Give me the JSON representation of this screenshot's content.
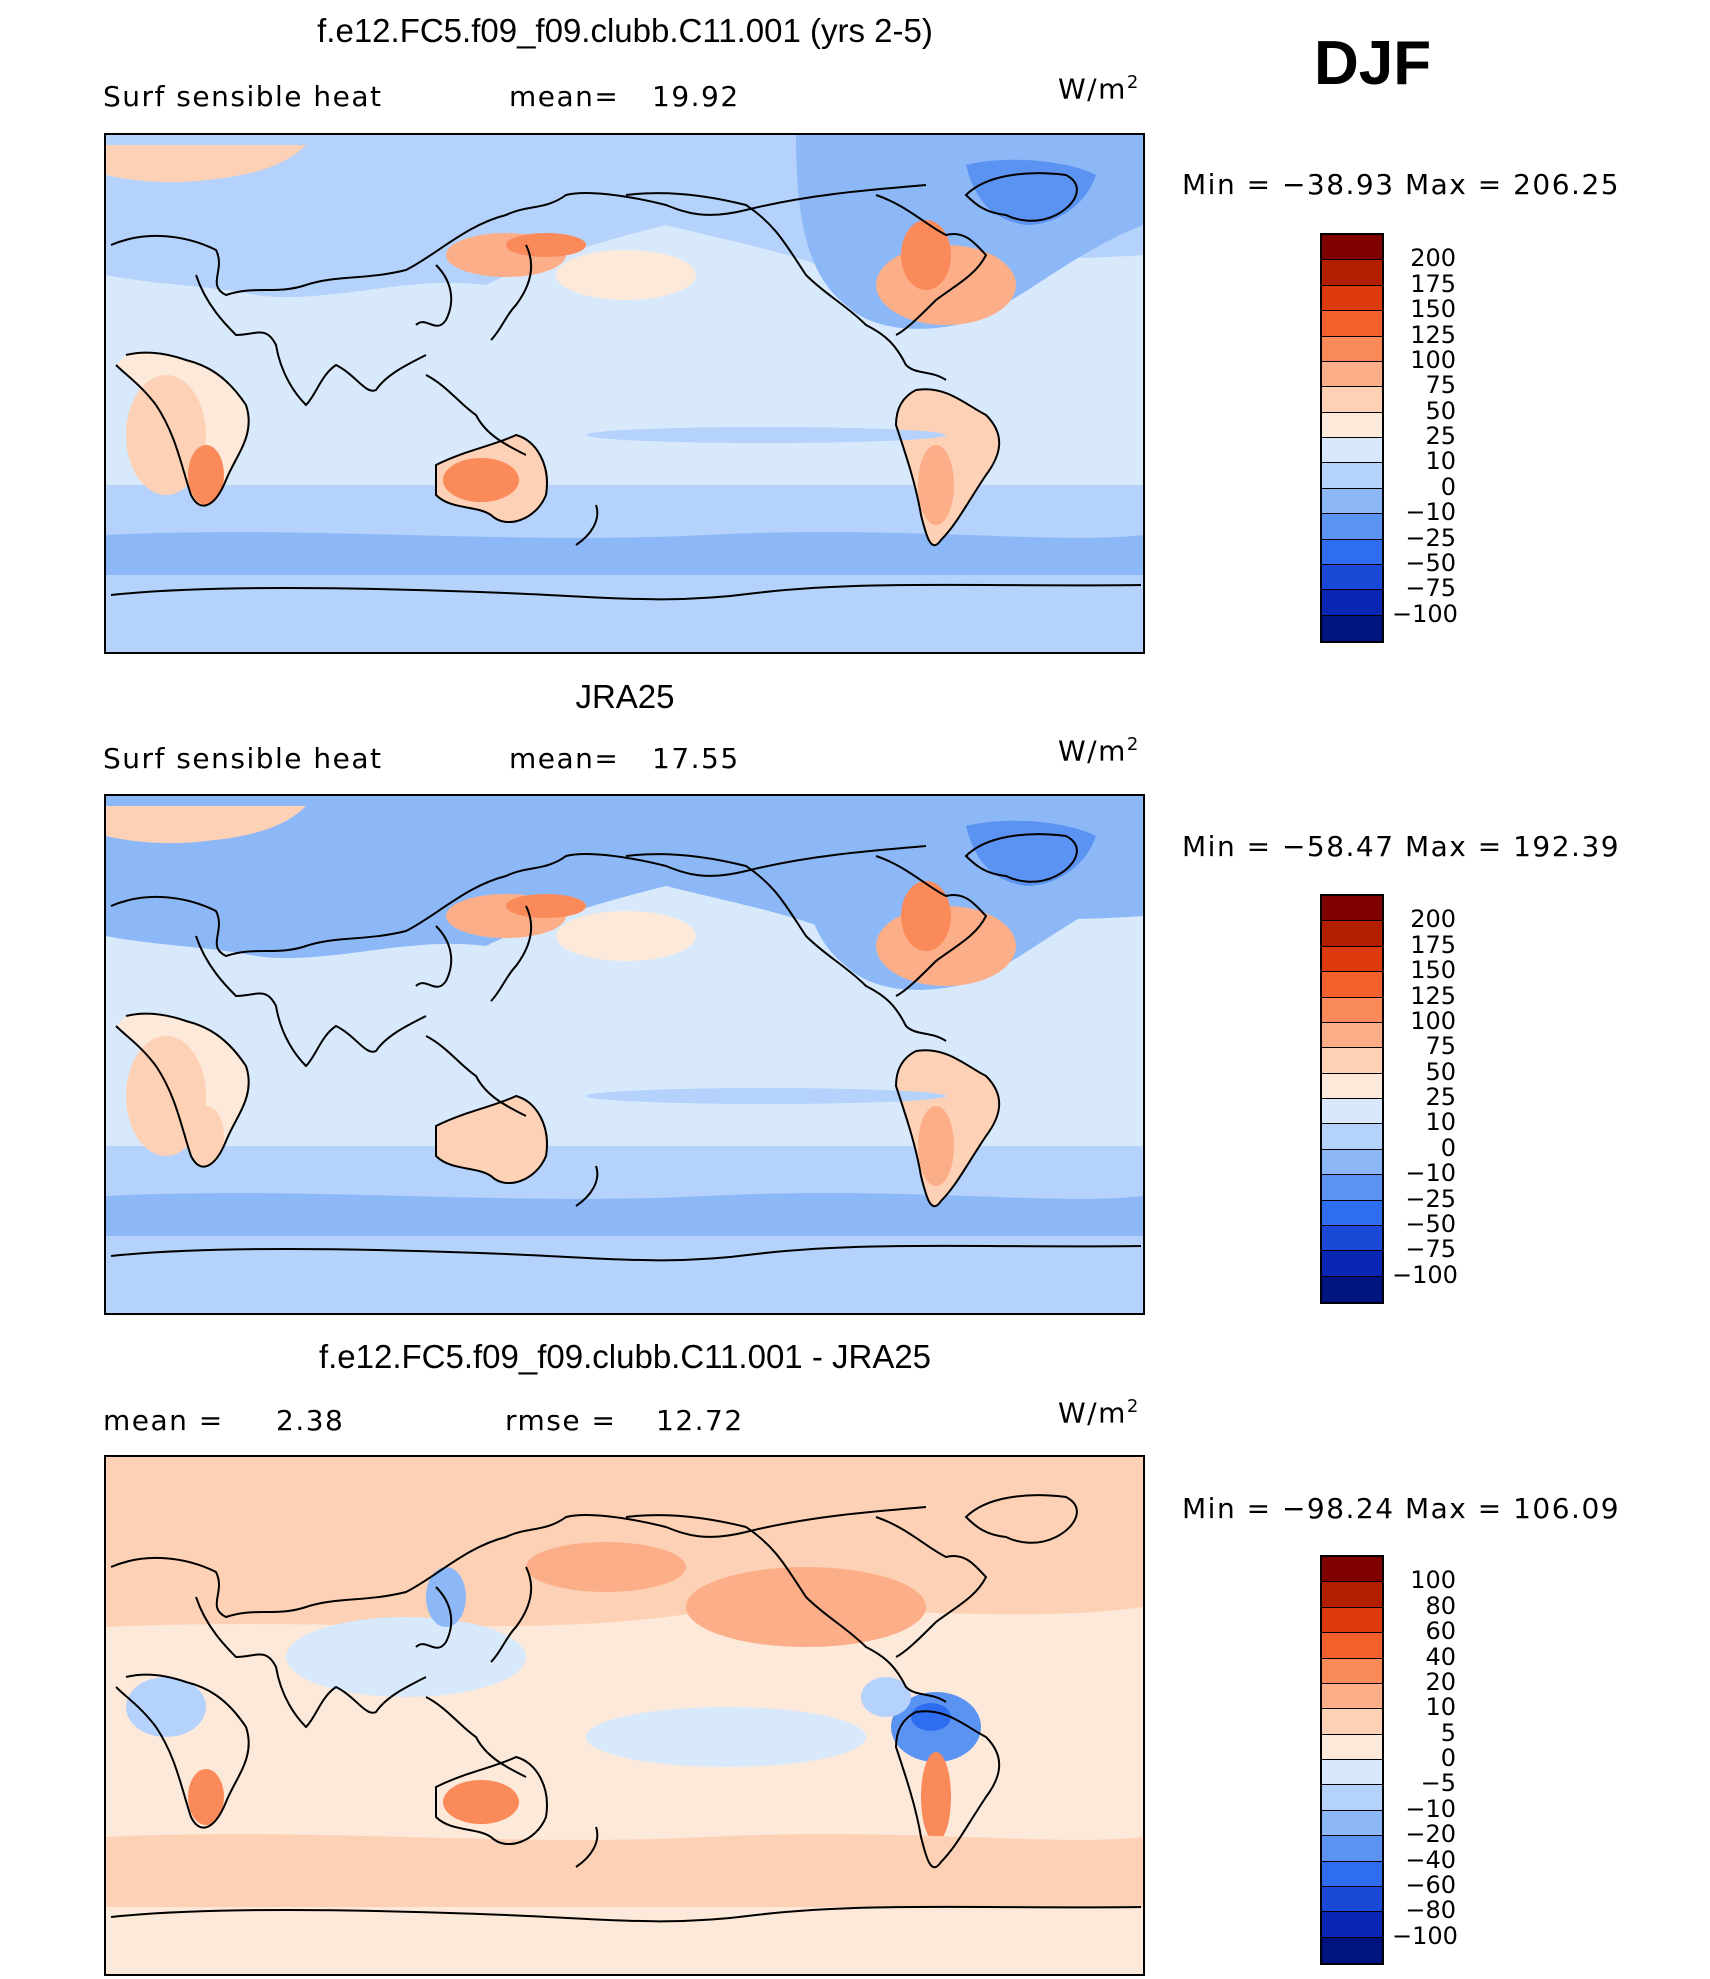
{
  "season": "DJF",
  "panels": [
    {
      "title": "f.e12.FC5.f09_f09.clubb.C11.001 (yrs 2-5)",
      "left_label": "Surf sensible heat",
      "mid_label": "mean=",
      "mid_value": "19.92",
      "units": "W/m",
      "units_sup": "2",
      "min_max": "Min = −38.93 Max = 206.25",
      "colorbar": {
        "labels": [
          "200",
          "175",
          "150",
          "125",
          "100",
          "75",
          "50",
          "25",
          "10",
          "0",
          "−10",
          "−25",
          "−50",
          "−75",
          "−100"
        ],
        "colors": [
          "#7f0000",
          "#b31e00",
          "#dd3a0f",
          "#f4602c",
          "#fb8a5a",
          "#fbae88",
          "#fdd1b5",
          "#fde9d9",
          "#d7e9fb",
          "#b4d2fb",
          "#8db8f7",
          "#5b93f2",
          "#2f6df0",
          "#1a49d8",
          "#0a27b4",
          "#00137f"
        ]
      },
      "map": {
        "scheme": "mean",
        "features": [
          {
            "name": "eurasia-cold",
            "cls": "n2"
          },
          {
            "name": "n-america-cold",
            "cls": "n3"
          },
          {
            "name": "kuroshio",
            "cls": "p3"
          },
          {
            "name": "gulf-stream",
            "cls": "p4"
          },
          {
            "name": "australia",
            "cls": "p4"
          },
          {
            "name": "southern-africa",
            "cls": "p4"
          },
          {
            "name": "south-america",
            "cls": "p2"
          },
          {
            "name": "southern-ocean",
            "cls": "n1"
          }
        ]
      }
    },
    {
      "title": "JRA25",
      "left_label": "Surf sensible heat",
      "mid_label": "mean=",
      "mid_value": "17.55",
      "units": "W/m",
      "units_sup": "2",
      "min_max": "Min = −58.47 Max = 192.39",
      "colorbar": {
        "labels": [
          "200",
          "175",
          "150",
          "125",
          "100",
          "75",
          "50",
          "25",
          "10",
          "0",
          "−10",
          "−25",
          "−50",
          "−75",
          "−100"
        ],
        "colors": [
          "#7f0000",
          "#b31e00",
          "#dd3a0f",
          "#f4602c",
          "#fb8a5a",
          "#fbae88",
          "#fdd1b5",
          "#fde9d9",
          "#d7e9fb",
          "#b4d2fb",
          "#8db8f7",
          "#5b93f2",
          "#2f6df0",
          "#1a49d8",
          "#0a27b4",
          "#00137f"
        ]
      },
      "map": {
        "scheme": "mean",
        "features": [
          {
            "name": "eurasia-cold",
            "cls": "n3"
          },
          {
            "name": "n-america-cold",
            "cls": "n3"
          },
          {
            "name": "kuroshio",
            "cls": "p3"
          },
          {
            "name": "gulf-stream",
            "cls": "p4"
          },
          {
            "name": "australia",
            "cls": "p2"
          },
          {
            "name": "southern-africa",
            "cls": "p2"
          },
          {
            "name": "south-america",
            "cls": "p2"
          },
          {
            "name": "southern-ocean",
            "cls": "n2"
          }
        ]
      }
    },
    {
      "title": "f.e12.FC5.f09_f09.clubb.C11.001 - JRA25",
      "left_label": "mean =",
      "left_value": "2.38",
      "mid_label": "rmse =",
      "mid_value": "12.72",
      "units": "W/m",
      "units_sup": "2",
      "min_max": "Min = −98.24 Max = 106.09",
      "colorbar": {
        "labels": [
          "100",
          "80",
          "60",
          "40",
          "20",
          "10",
          "5",
          "0",
          "−5",
          "−10",
          "−20",
          "−40",
          "−60",
          "−80",
          "−100"
        ],
        "colors": [
          "#7f0000",
          "#b31e00",
          "#dd3a0f",
          "#f4602c",
          "#fb8a5a",
          "#fbae88",
          "#fdd1b5",
          "#fde9d9",
          "#d7e9fb",
          "#b4d2fb",
          "#8db8f7",
          "#5b93f2",
          "#2f6df0",
          "#1a49d8",
          "#0a27b4",
          "#00137f"
        ]
      },
      "map": {
        "scheme": "diff",
        "features": [
          {
            "name": "eurasia-warm",
            "cls": "p2"
          },
          {
            "name": "n-america-warm",
            "cls": "p2"
          },
          {
            "name": "amazon-cold",
            "cls": "n4"
          },
          {
            "name": "australia",
            "cls": "p4"
          },
          {
            "name": "southern-africa",
            "cls": "p4"
          },
          {
            "name": "central-africa-cold",
            "cls": "n2"
          },
          {
            "name": "southern-ocean",
            "cls": "p1"
          }
        ]
      }
    }
  ]
}
